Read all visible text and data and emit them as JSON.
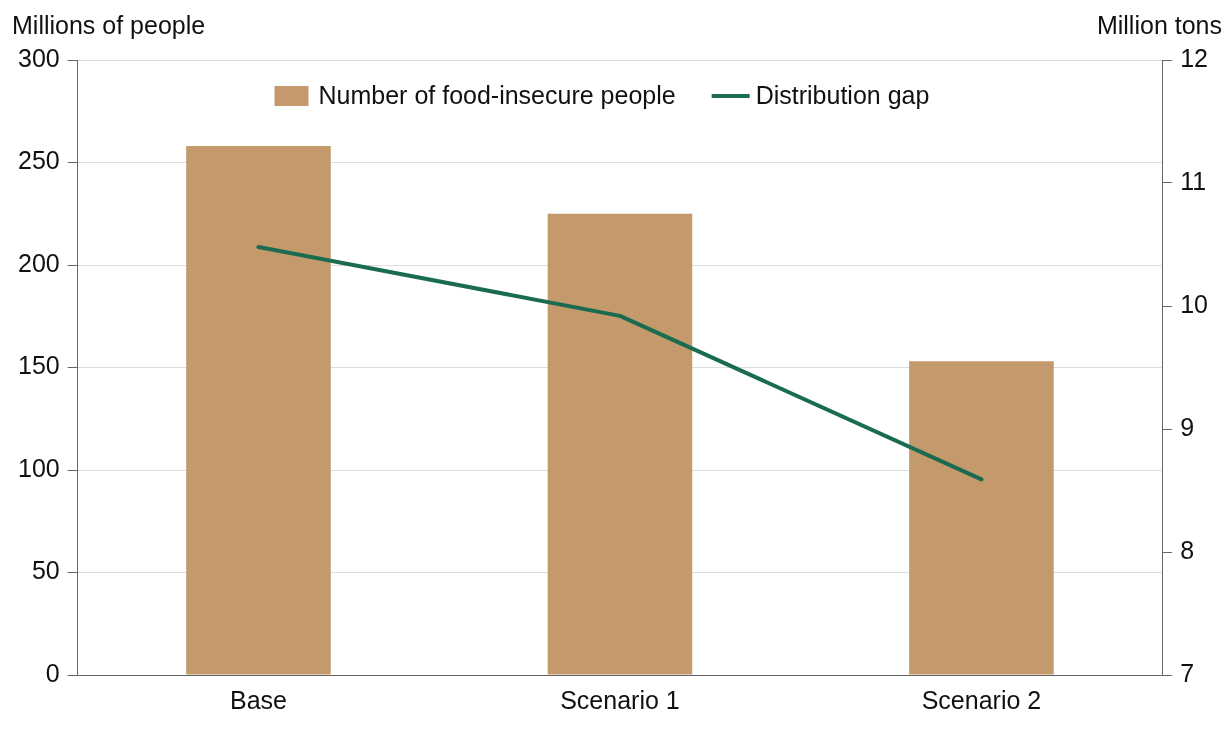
{
  "chart_data": {
    "type": "bar",
    "ylabel": "Millions of people",
    "y2label": "Million tons",
    "categories": [
      "Base",
      "Scenario 1",
      "Scenario 2"
    ],
    "series": [
      {
        "name": "Number of food-insecure people",
        "color": "#c4996c",
        "values": [
          258,
          225,
          153
        ]
      },
      {
        "name": "Distribution gap",
        "type": "line",
        "axis": "y2",
        "color": "#1a6b50",
        "values": [
          10.48,
          9.92,
          8.59
        ]
      }
    ],
    "ylim": [
      0,
      300
    ],
    "yticks": [
      0,
      50,
      100,
      150,
      200,
      250,
      300
    ],
    "y2lim": [
      7,
      12
    ],
    "y2ticks": [
      7,
      8,
      9,
      10,
      11,
      12
    ],
    "grid": "y",
    "legend": "top",
    "marker": "none"
  }
}
